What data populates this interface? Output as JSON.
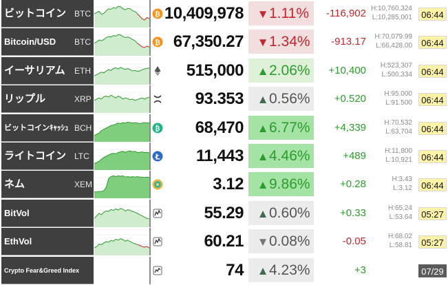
{
  "colors": {
    "down_text": "#c1272d",
    "up_text": "#2c9c2c",
    "down_bg": "#f2dede",
    "up_bg_light": "#dff0d8",
    "up_bg_strong": "#a5e2a5",
    "neutral_bg": "#ececec",
    "time_bg": "#fff3a8"
  },
  "rows": [
    {
      "name": "ビットコイン",
      "ticker": "BTC",
      "icon": "bitcoin-icon",
      "price": "10,409,978",
      "direction": "down",
      "pct": "1.11%",
      "diff": "-116,902",
      "high": "H:10,760,324",
      "low": "L:10,285,001",
      "time": "06:44",
      "time_style": "yellow",
      "pct_style": "down",
      "spark": [
        0.5,
        0.55,
        0.6,
        0.48,
        0.52,
        0.62,
        0.7,
        0.68,
        0.75,
        0.72,
        0.8,
        0.78,
        0.7,
        0.66,
        0.72,
        0.7,
        0.62,
        0.6,
        0.5,
        0.4,
        0.3,
        0.25,
        0.35,
        0.3
      ],
      "name_size": 15
    },
    {
      "name": "Bitcoin/USD",
      "ticker": "BTC",
      "icon": "bitcoin-icon",
      "price": "67,350.27",
      "direction": "down",
      "pct": "1.34%",
      "diff": "-913.17",
      "high": "H:70,079.99",
      "low": "L:66,428.00",
      "time": "06:44",
      "time_style": "yellow",
      "pct_style": "down",
      "spark": [
        0.45,
        0.5,
        0.58,
        0.55,
        0.6,
        0.68,
        0.72,
        0.7,
        0.76,
        0.74,
        0.8,
        0.78,
        0.72,
        0.68,
        0.7,
        0.66,
        0.6,
        0.55,
        0.45,
        0.38,
        0.3,
        0.28,
        0.33,
        0.3
      ],
      "name_size": 13
    },
    {
      "name": "イーサリアム",
      "ticker": "ETH",
      "icon": "ethereum-icon",
      "price": "515,000",
      "direction": "up",
      "pct": "2.06%",
      "diff": "+10,400",
      "high": "H:523,307",
      "low": "L:500,334",
      "time": "06:44",
      "time_style": "yellow",
      "pct_style": "up_light",
      "spark": [
        0.3,
        0.35,
        0.4,
        0.45,
        0.42,
        0.5,
        0.55,
        0.52,
        0.6,
        0.62,
        0.58,
        0.64,
        0.6,
        0.56,
        0.6,
        0.55,
        0.5,
        0.52,
        0.48,
        0.5,
        0.55,
        0.58,
        0.6,
        0.62
      ],
      "name_size": 15
    },
    {
      "name": "リップル",
      "ticker": "XRP",
      "icon": "ripple-icon",
      "price": "93.353",
      "direction": "up",
      "pct": "0.56%",
      "diff": "+0.520",
      "high": "H:95.000",
      "low": "L:91.500",
      "time": "06:44",
      "time_style": "yellow",
      "pct_style": "neutral",
      "spark": [
        0.45,
        0.5,
        0.55,
        0.5,
        0.6,
        0.62,
        0.58,
        0.66,
        0.6,
        0.55,
        0.62,
        0.58,
        0.5,
        0.55,
        0.52,
        0.48,
        0.5,
        0.45,
        0.48,
        0.52,
        0.55,
        0.5,
        0.55,
        0.58
      ],
      "name_size": 15
    },
    {
      "name": "ビットコインｷｬｯｼｭ",
      "ticker": "BCH",
      "icon": "bitcoin-cash-icon",
      "price": "68,470",
      "direction": "up",
      "pct": "6.77%",
      "diff": "+4,339",
      "high": "H:70,532",
      "low": "L:63,704",
      "time": "06:44",
      "time_style": "yellow",
      "pct_style": "up_strong",
      "spark": [
        0.2,
        0.25,
        0.3,
        0.4,
        0.45,
        0.5,
        0.55,
        0.6,
        0.62,
        0.66,
        0.7,
        0.68,
        0.72,
        0.7,
        0.74,
        0.72,
        0.7,
        0.72,
        0.7,
        0.68,
        0.7,
        0.72,
        0.7,
        0.72
      ],
      "name_size": 11
    },
    {
      "name": "ライトコイン",
      "ticker": "LTC",
      "icon": "litecoin-icon",
      "price": "11,443",
      "direction": "up",
      "pct": "4.46%",
      "diff": "+489",
      "high": "H:11,800",
      "low": "L:10,921",
      "time": "06:44",
      "time_style": "yellow",
      "pct_style": "up_strong",
      "spark": [
        0.2,
        0.25,
        0.3,
        0.38,
        0.45,
        0.5,
        0.55,
        0.6,
        0.62,
        0.6,
        0.65,
        0.68,
        0.7,
        0.66,
        0.7,
        0.72,
        0.68,
        0.7,
        0.65,
        0.66,
        0.68,
        0.65,
        0.66,
        0.64
      ],
      "name_size": 15
    },
    {
      "name": "ネム",
      "ticker": "XEM",
      "icon": "nem-icon",
      "price": "3.12",
      "direction": "up",
      "pct": "9.86%",
      "diff": "+0.28",
      "high": "H:3.43",
      "low": "L:3.12",
      "time": "06:44",
      "time_style": "yellow",
      "pct_style": "up_strong",
      "spark": [
        0.2,
        0.2,
        0.22,
        0.22,
        0.25,
        0.4,
        0.75,
        0.82,
        0.85,
        0.82,
        0.85,
        0.83,
        0.85,
        0.8,
        0.82,
        0.8,
        0.82,
        0.8,
        0.82,
        0.8,
        0.8,
        0.78,
        0.8,
        0.78
      ],
      "name_size": 15
    },
    {
      "name": "BitVol",
      "ticker": "",
      "icon": "volatility-icon",
      "price": "55.29",
      "direction": "up",
      "pct": "0.60%",
      "diff": "+0.33",
      "high": "H:65.24",
      "low": "L:53.64",
      "time": "05:27",
      "time_style": "yellow",
      "pct_style": "neutral",
      "spark": [
        0.3,
        0.4,
        0.5,
        0.45,
        0.55,
        0.6,
        0.58,
        0.66,
        0.62,
        0.68,
        0.64,
        0.7,
        0.66,
        0.6,
        0.65,
        0.62,
        0.58,
        0.55,
        0.5,
        0.45,
        0.4,
        0.35,
        0.3,
        0.28
      ],
      "name_size": 13
    },
    {
      "name": "EthVol",
      "ticker": "",
      "icon": "volatility-icon",
      "price": "60.21",
      "direction": "down",
      "pct": "0.08%",
      "diff": "-0.05",
      "high": "H:68.02",
      "low": "L:58.81",
      "time": "05:27",
      "time_style": "yellow",
      "pct_style": "neutral",
      "spark": [
        0.25,
        0.3,
        0.4,
        0.38,
        0.45,
        0.5,
        0.48,
        0.55,
        0.52,
        0.6,
        0.56,
        0.62,
        0.58,
        0.52,
        0.56,
        0.5,
        0.45,
        0.42,
        0.38,
        0.35,
        0.3,
        0.28,
        0.3,
        0.25
      ],
      "name_size": 13
    },
    {
      "name": "Crypto Fear&Greed Index",
      "ticker": "",
      "icon": "index-icon",
      "price": "74",
      "direction": "up",
      "pct": "4.23%",
      "diff": "+3",
      "high": "",
      "low": "",
      "time": "07/29",
      "time_style": "dark",
      "pct_style": "neutral",
      "spark": [],
      "name_size": 9
    }
  ]
}
